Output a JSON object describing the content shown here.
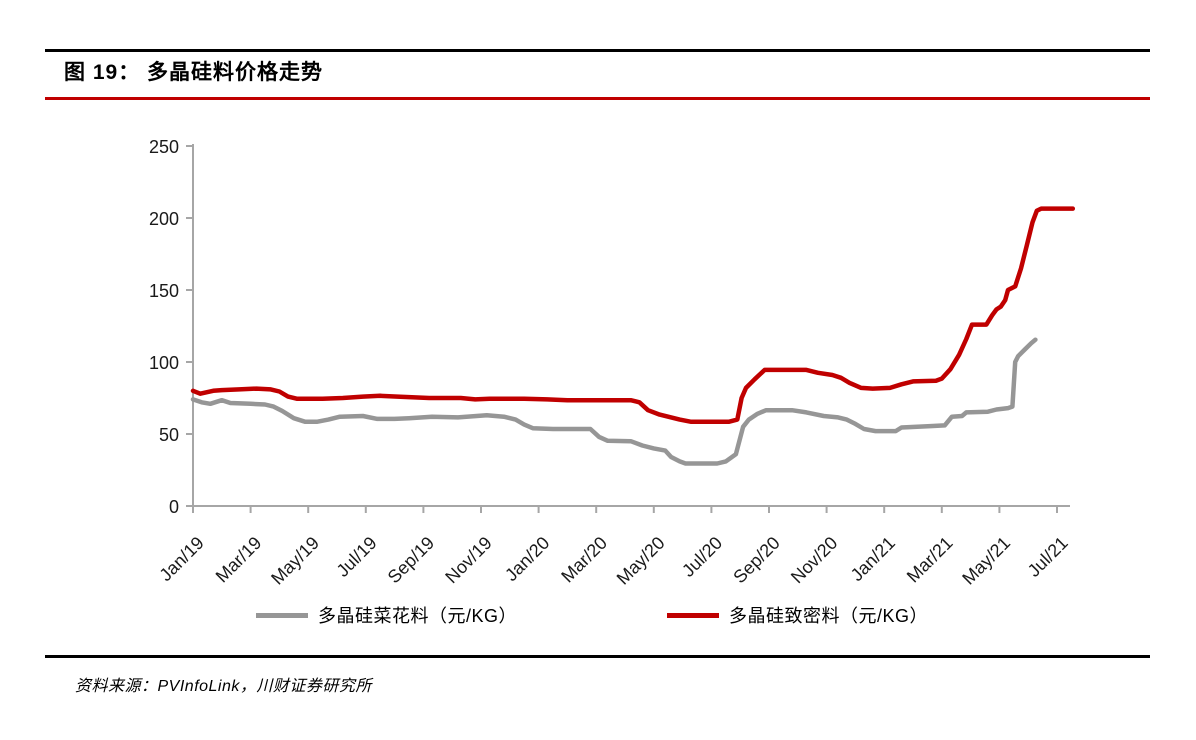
{
  "figure": {
    "title": "图 19：  多晶硅料价格走势",
    "source_text": "资料来源：PVInfoLink，川财证券研究所"
  },
  "colors": {
    "accent_red": "#c00000",
    "series_gray": "#969696",
    "axis_gray": "#a6a6a6",
    "text_black": "#000000"
  },
  "chart_data": {
    "type": "line",
    "title": "多晶硅料价格走势",
    "x_unit": "months since Jan/19",
    "x_tick_months": [
      0,
      2,
      4,
      6,
      8,
      10,
      12,
      14,
      16,
      18,
      20,
      22,
      24,
      26,
      28,
      30
    ],
    "x_tick_labels": [
      "Jan/19",
      "Mar/19",
      "May/19",
      "Jul/19",
      "Sep/19",
      "Nov/19",
      "Jan/20",
      "Mar/20",
      "May/20",
      "Jul/20",
      "Sep/20",
      "Nov/20",
      "Jan/21",
      "Mar/21",
      "May/21",
      "Jul/21"
    ],
    "y_ticks": [
      0,
      50,
      100,
      150,
      200,
      250
    ],
    "ylim": [
      0,
      250
    ],
    "grid": false,
    "legend_position": "bottom",
    "series": [
      {
        "name": "多晶硅菜花料（元/KG）",
        "color": "#969696",
        "points": [
          [
            0,
            74
          ],
          [
            0.3,
            72
          ],
          [
            0.6,
            71
          ],
          [
            1,
            73.5
          ],
          [
            1.3,
            71.5
          ],
          [
            2,
            71
          ],
          [
            2.5,
            70.5
          ],
          [
            2.8,
            69
          ],
          [
            3.1,
            66
          ],
          [
            3.5,
            61
          ],
          [
            3.9,
            58.5
          ],
          [
            4.3,
            58.5
          ],
          [
            4.7,
            60
          ],
          [
            5.1,
            62
          ],
          [
            5.9,
            62.5
          ],
          [
            6.4,
            60.5
          ],
          [
            7,
            60.5
          ],
          [
            7.5,
            61
          ],
          [
            8.3,
            62
          ],
          [
            9.2,
            61.5
          ],
          [
            10.2,
            63
          ],
          [
            10.8,
            62
          ],
          [
            11.2,
            60
          ],
          [
            11.5,
            56.5
          ],
          [
            11.8,
            54
          ],
          [
            12.5,
            53.5
          ],
          [
            13.8,
            53.5
          ],
          [
            14.1,
            48
          ],
          [
            14.4,
            45.3
          ],
          [
            15.2,
            45
          ],
          [
            15.6,
            42
          ],
          [
            16,
            40
          ],
          [
            16.4,
            38.5
          ],
          [
            16.6,
            34
          ],
          [
            16.9,
            31
          ],
          [
            17.1,
            29.5
          ],
          [
            18.2,
            29.5
          ],
          [
            18.5,
            31
          ],
          [
            18.85,
            36
          ],
          [
            19.1,
            55
          ],
          [
            19.3,
            60
          ],
          [
            19.6,
            64
          ],
          [
            19.9,
            66.5
          ],
          [
            20.8,
            66.5
          ],
          [
            21.3,
            65
          ],
          [
            21.9,
            62.5
          ],
          [
            22.4,
            61.5
          ],
          [
            22.7,
            60
          ],
          [
            23,
            57
          ],
          [
            23.3,
            53.5
          ],
          [
            23.7,
            52
          ],
          [
            24.4,
            52
          ],
          [
            24.6,
            54.5
          ],
          [
            25.6,
            55.5
          ],
          [
            26.1,
            56
          ],
          [
            26.35,
            62
          ],
          [
            26.7,
            62.5
          ],
          [
            26.85,
            65
          ],
          [
            27.6,
            65.5
          ],
          [
            27.9,
            67
          ],
          [
            28.3,
            68
          ],
          [
            28.45,
            69
          ],
          [
            28.55,
            100
          ],
          [
            28.65,
            104
          ],
          [
            28.9,
            109
          ],
          [
            29.1,
            113
          ],
          [
            29.25,
            115.5
          ]
        ]
      },
      {
        "name": "多晶硅致密料（元/KG）",
        "color": "#c00000",
        "points": [
          [
            0,
            80
          ],
          [
            0.25,
            78
          ],
          [
            0.7,
            80
          ],
          [
            1,
            80.5
          ],
          [
            1.6,
            81
          ],
          [
            2.2,
            81.5
          ],
          [
            2.7,
            81
          ],
          [
            3,
            79.5
          ],
          [
            3.3,
            76
          ],
          [
            3.6,
            74.5
          ],
          [
            4.5,
            74.5
          ],
          [
            5.2,
            75
          ],
          [
            5.9,
            76
          ],
          [
            6.5,
            76.5
          ],
          [
            7.1,
            76
          ],
          [
            7.6,
            75.5
          ],
          [
            8.2,
            75
          ],
          [
            9.3,
            75
          ],
          [
            9.8,
            74
          ],
          [
            10.3,
            74.5
          ],
          [
            11.5,
            74.5
          ],
          [
            12.3,
            74
          ],
          [
            13,
            73.5
          ],
          [
            15.2,
            73.5
          ],
          [
            15.5,
            72
          ],
          [
            15.8,
            66.5
          ],
          [
            16.2,
            63.5
          ],
          [
            16.9,
            60
          ],
          [
            17.3,
            58.5
          ],
          [
            18.6,
            58.5
          ],
          [
            18.9,
            60
          ],
          [
            19.05,
            75
          ],
          [
            19.2,
            82
          ],
          [
            19.5,
            88
          ],
          [
            19.85,
            94.5
          ],
          [
            21.3,
            94.5
          ],
          [
            21.7,
            92.5
          ],
          [
            22.2,
            91
          ],
          [
            22.5,
            89
          ],
          [
            22.8,
            85.5
          ],
          [
            23.2,
            82
          ],
          [
            23.6,
            81.5
          ],
          [
            24.2,
            82
          ],
          [
            24.6,
            84.5
          ],
          [
            25,
            86.5
          ],
          [
            25.8,
            87
          ],
          [
            26,
            88.5
          ],
          [
            26.3,
            95
          ],
          [
            26.6,
            105
          ],
          [
            26.85,
            116
          ],
          [
            27.05,
            126
          ],
          [
            27.55,
            126
          ],
          [
            27.75,
            132.5
          ],
          [
            27.9,
            136.5
          ],
          [
            28.05,
            138.5
          ],
          [
            28.2,
            143
          ],
          [
            28.3,
            150
          ],
          [
            28.55,
            152.5
          ],
          [
            28.75,
            165
          ],
          [
            28.95,
            181
          ],
          [
            29.15,
            197
          ],
          [
            29.3,
            205
          ],
          [
            29.45,
            206.5
          ],
          [
            30.55,
            206.5
          ]
        ]
      }
    ]
  }
}
